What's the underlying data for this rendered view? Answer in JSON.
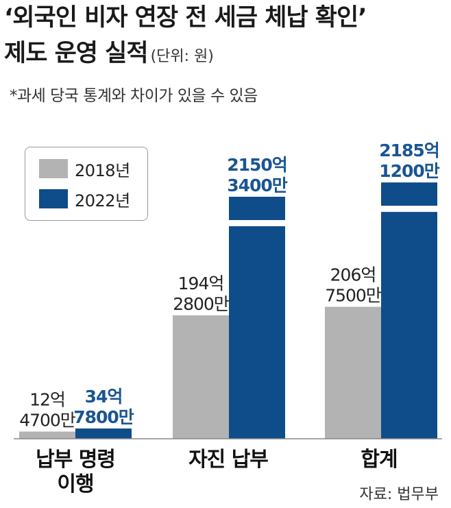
{
  "header": {
    "title_line1": "‘외국인 비자 연장 전 세금 체납 확인’",
    "title_line2": "제도 운영 실적",
    "unit": "(단위: 원)",
    "note": "*과세 당국 통계와 차이가 있을 수 있음"
  },
  "source": "자료: 법무부",
  "colors": {
    "s2018": "#b3b3b3",
    "s2022": "#0f4c8a",
    "label2022": "#1a5592"
  },
  "chart_data": {
    "type": "bar",
    "title": "‘외국인 비자 연장 전 세금 체납 확인’ 제도 운영 실적",
    "unit": "원",
    "axis_break": true,
    "categories": [
      {
        "lines": [
          "납부 명령",
          "이행"
        ]
      },
      {
        "lines": [
          "자진 납부"
        ]
      },
      {
        "lines": [
          "합계"
        ]
      }
    ],
    "series": [
      {
        "name": "2018년",
        "values": [
          1247000000,
          19428000000,
          20675000000
        ],
        "labels": [
          [
            "12억",
            "4700만"
          ],
          [
            "194억",
            "2800만"
          ],
          [
            "206억",
            "7500만"
          ]
        ]
      },
      {
        "name": "2022년",
        "values": [
          3478000000,
          215034000000,
          218512000000
        ],
        "labels": [
          [
            "34억",
            "7800만"
          ],
          [
            "2150억",
            "3400만"
          ],
          [
            "2185억",
            "1200만"
          ]
        ]
      }
    ]
  }
}
